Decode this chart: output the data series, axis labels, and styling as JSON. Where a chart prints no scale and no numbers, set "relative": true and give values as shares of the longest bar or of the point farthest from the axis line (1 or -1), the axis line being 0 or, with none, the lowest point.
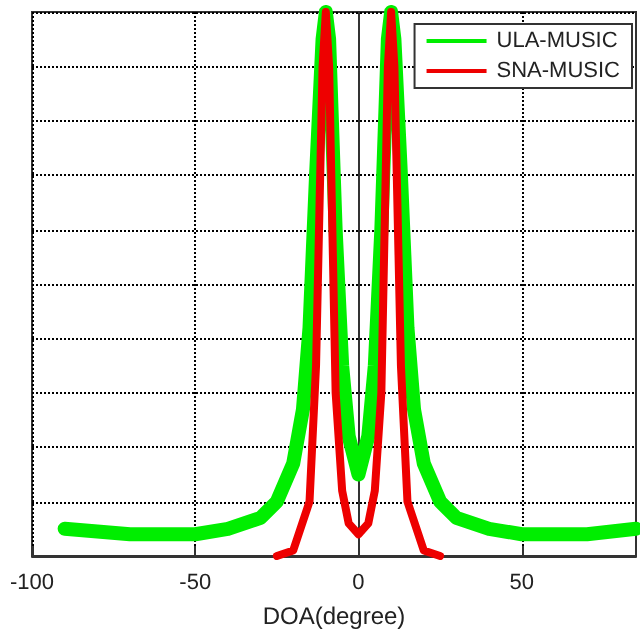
{
  "chart_data": {
    "type": "line",
    "xlabel": "DOA(degree)",
    "relative": true,
    "grid": true,
    "legend": "top right",
    "xlim": [
      -100,
      85
    ],
    "xticks": [
      -100,
      -50,
      0,
      50
    ],
    "series": [
      {
        "name": "ULA-MUSIC",
        "color": "#00ee00",
        "x": [
          -90,
          -70,
          -50,
          -40,
          -30,
          -25,
          -20,
          -17,
          -15,
          -13,
          -11,
          -10,
          -9,
          -7,
          -5,
          -3,
          0,
          3,
          5,
          7,
          9,
          10,
          11,
          13,
          15,
          17,
          20,
          25,
          30,
          40,
          50,
          70,
          85
        ],
        "values": [
          0.05,
          0.04,
          0.04,
          0.05,
          0.07,
          0.1,
          0.17,
          0.27,
          0.42,
          0.7,
          0.95,
          1,
          0.95,
          0.6,
          0.35,
          0.22,
          0.15,
          0.22,
          0.35,
          0.6,
          0.95,
          1,
          0.95,
          0.7,
          0.42,
          0.27,
          0.17,
          0.1,
          0.07,
          0.05,
          0.04,
          0.04,
          0.05
        ]
      },
      {
        "name": "SNA-MUSIC",
        "color": "#ee0000",
        "x": [
          -25,
          -20,
          -15,
          -13,
          -11,
          -10,
          -9,
          -7,
          -5,
          -3,
          0,
          3,
          5,
          7,
          9,
          10,
          11,
          13,
          15,
          20,
          25
        ],
        "values": [
          0,
          0.01,
          0.1,
          0.35,
          0.9,
          1,
          0.9,
          0.3,
          0.12,
          0.06,
          0.04,
          0.06,
          0.12,
          0.3,
          0.9,
          1,
          0.9,
          0.35,
          0.1,
          0.01,
          0
        ]
      }
    ]
  }
}
